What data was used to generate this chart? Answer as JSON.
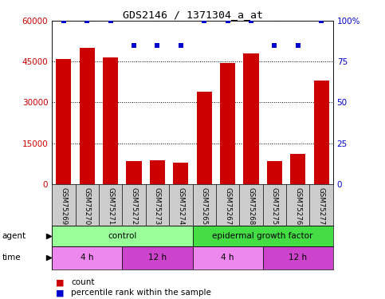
{
  "title": "GDS2146 / 1371304_a_at",
  "samples": [
    "GSM75269",
    "GSM75270",
    "GSM75271",
    "GSM75272",
    "GSM75273",
    "GSM75274",
    "GSM75265",
    "GSM75267",
    "GSM75268",
    "GSM75275",
    "GSM75276",
    "GSM75277"
  ],
  "counts": [
    46000,
    50000,
    46500,
    8500,
    8700,
    7800,
    34000,
    44500,
    48000,
    8500,
    11000,
    38000
  ],
  "percentiles": [
    100,
    100,
    100,
    85,
    85,
    85,
    100,
    100,
    100,
    85,
    85,
    100
  ],
  "ylim_left": [
    0,
    60000
  ],
  "ylim_right": [
    0,
    100
  ],
  "yticks_left": [
    0,
    15000,
    30000,
    45000,
    60000
  ],
  "ytick_labels_left": [
    "0",
    "15000",
    "30000",
    "45000",
    "60000"
  ],
  "yticks_right": [
    0,
    25,
    50,
    75,
    100
  ],
  "ytick_labels_right": [
    "0",
    "25",
    "50",
    "75",
    "100%"
  ],
  "bar_color": "#cc0000",
  "dot_color": "#0000cc",
  "agent_groups": [
    {
      "label": "control",
      "start": 0,
      "end": 6,
      "color": "#99ff99"
    },
    {
      "label": "epidermal growth factor",
      "start": 6,
      "end": 12,
      "color": "#44dd44"
    }
  ],
  "time_groups": [
    {
      "label": "4 h",
      "start": 0,
      "end": 3,
      "color": "#ee88ee"
    },
    {
      "label": "12 h",
      "start": 3,
      "end": 6,
      "color": "#cc44cc"
    },
    {
      "label": "4 h",
      "start": 6,
      "end": 9,
      "color": "#ee88ee"
    },
    {
      "label": "12 h",
      "start": 9,
      "end": 12,
      "color": "#cc44cc"
    }
  ],
  "legend_count_color": "#cc0000",
  "legend_dot_color": "#0000cc",
  "bg_color": "#ffffff",
  "grid_color": "#000000",
  "tick_label_color_left": "#cc0000",
  "tick_label_color_right": "#0000cc",
  "sample_bg_color": "#cccccc"
}
